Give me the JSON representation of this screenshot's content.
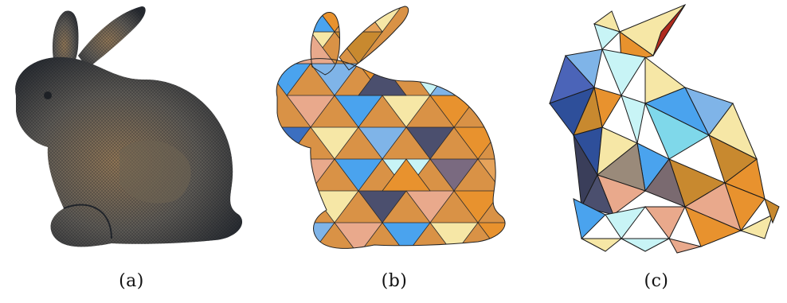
{
  "figure": {
    "panels": [
      {
        "id": "a",
        "caption": "(a)",
        "style": "dense mesh"
      },
      {
        "id": "b",
        "caption": "(b)",
        "style": "medium triangulation"
      },
      {
        "id": "c",
        "caption": "(c)",
        "style": "coarse triangulation"
      }
    ],
    "colors": {
      "dense_dark": "#3a4148",
      "dense_bronze": "#8a6a48",
      "light_blue": "#7fb4e8",
      "sky_blue": "#4aa3ee",
      "orange": "#e8922e",
      "pale_yellow": "#f6e7a6",
      "cyan_pale": "#c8f4f6",
      "slate": "#4b4f6e",
      "peach": "#e9a98c"
    }
  }
}
